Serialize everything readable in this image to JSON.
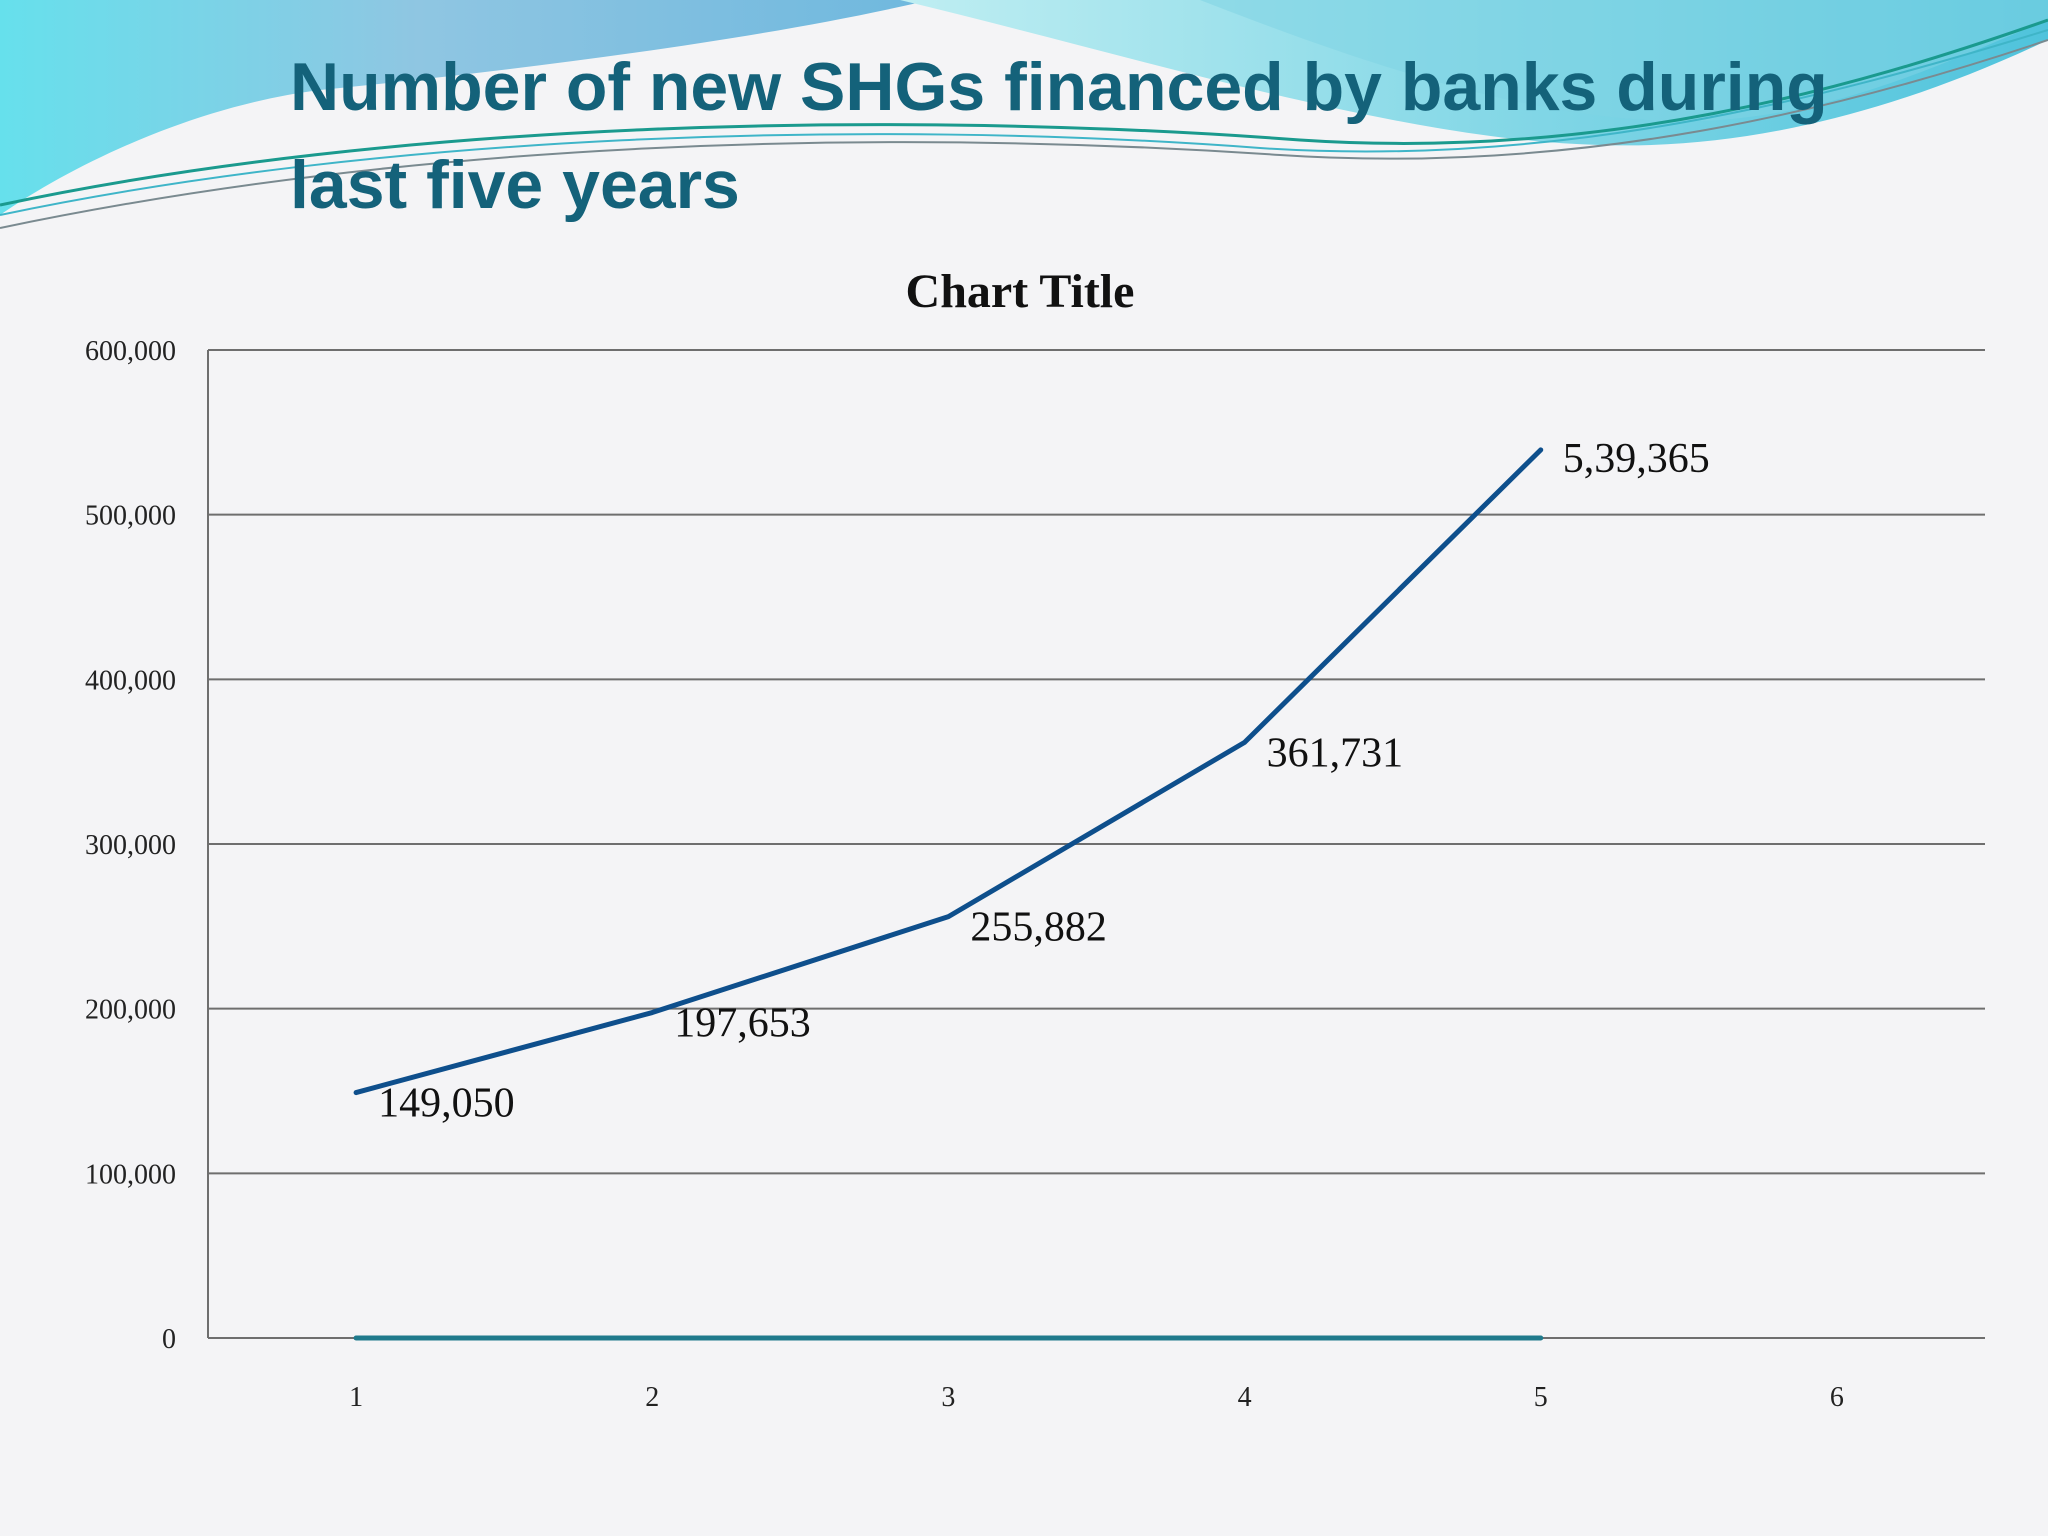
{
  "slide": {
    "title": "Number of new SHGs financed by banks during last five years"
  },
  "colors": {
    "title": "#14627a",
    "series_line": "#0e4f8c",
    "baseline_series": "#1f7a8c",
    "gridline": "#6e6e6e",
    "wave_light": "#7fd3e4",
    "wave_dark": "#2aa0c0"
  },
  "chart_data": {
    "type": "line",
    "title": "Chart Title",
    "x": [
      1,
      2,
      3,
      4,
      5
    ],
    "x_tick_labels": [
      "1",
      "2",
      "3",
      "4",
      "5",
      "6"
    ],
    "y_tick_labels": [
      "0",
      "100,000",
      "200,000",
      "300,000",
      "400,000",
      "500,000",
      "600,000"
    ],
    "ylim": [
      0,
      600000
    ],
    "grid": true,
    "series": [
      {
        "values": [
          149050,
          197653,
          255882,
          361731,
          539365
        ],
        "data_labels": [
          "149,050",
          "197,653",
          "255,882",
          "361,731",
          "5,39,365"
        ],
        "color": "#0e4f8c"
      },
      {
        "values": [
          0,
          0,
          0,
          0,
          0
        ],
        "color": "#1f7a8c"
      }
    ]
  }
}
